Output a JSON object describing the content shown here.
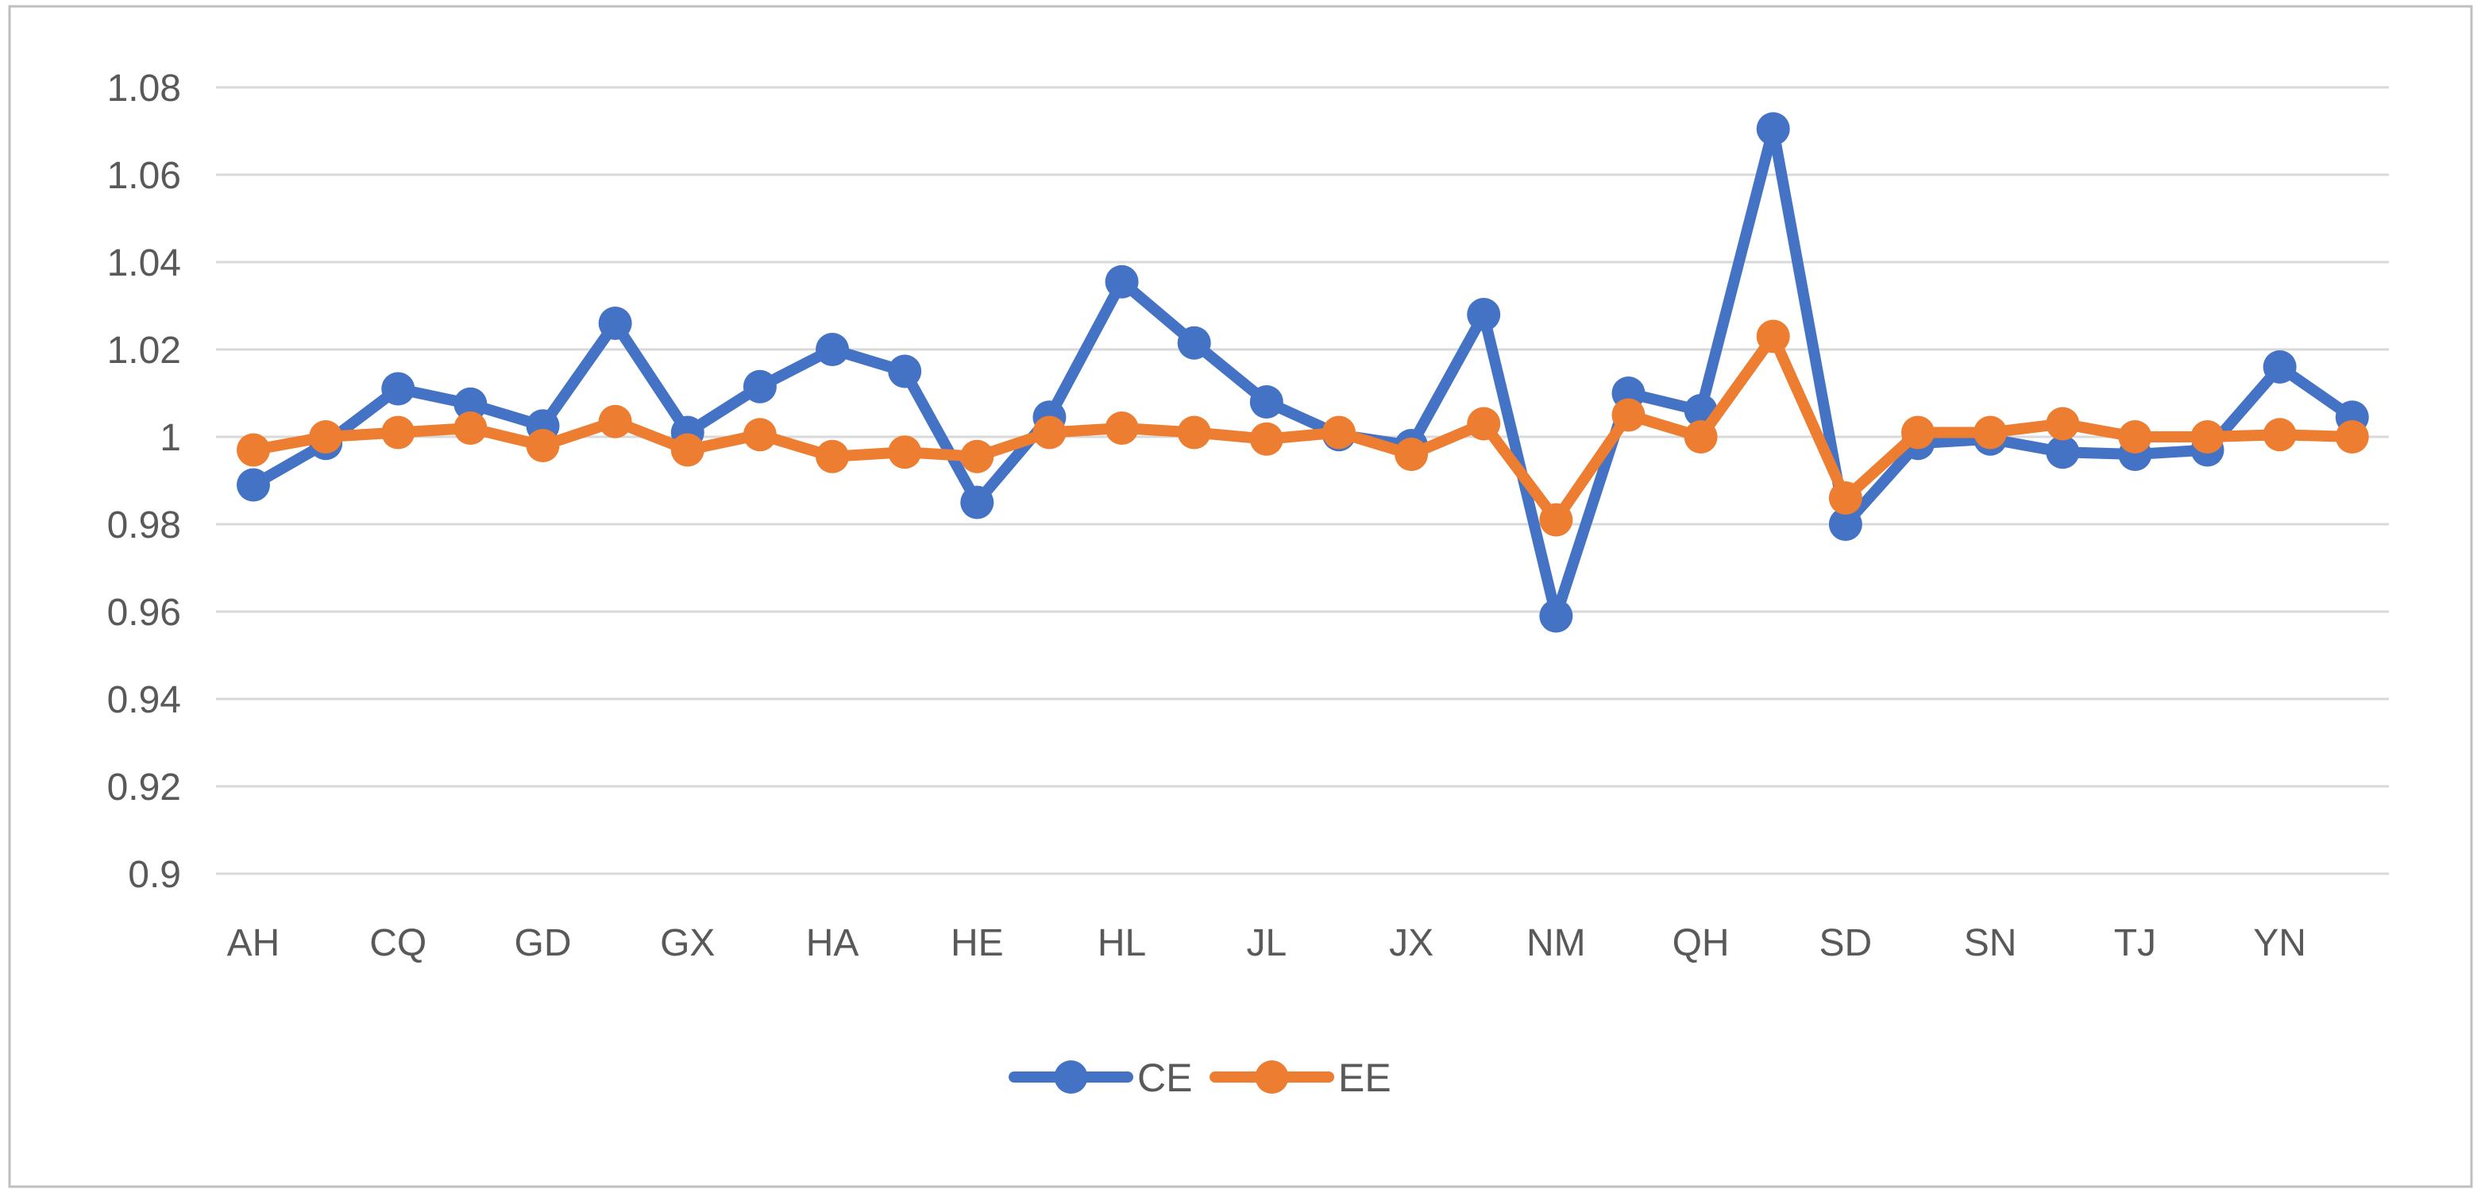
{
  "chart_data": {
    "type": "line",
    "title": "",
    "xlabel": "",
    "ylabel": "",
    "ylim": [
      0.9,
      1.08
    ],
    "grid": true,
    "legend_position": "bottom",
    "y_tick_labels": [
      "1.08",
      "1.06",
      "1.04",
      "1.02",
      "1",
      "0.98",
      "0.96",
      "0.94",
      "0.92",
      "0.9"
    ],
    "x_tick_labels": [
      "AH",
      "CQ",
      "GD",
      "GX",
      "HA",
      "HE",
      "HL",
      "JL",
      "JX",
      "NM",
      "QH",
      "SD",
      "SN",
      "TJ",
      "YN"
    ],
    "x_tick_every": 2,
    "n_points": 30,
    "series": [
      {
        "name": "CE",
        "color": "#4472C4",
        "values": [
          0.989,
          0.9985,
          1.011,
          1.0075,
          1.0025,
          1.026,
          1.001,
          1.0115,
          1.02,
          1.015,
          0.985,
          1.0045,
          1.0355,
          1.0215,
          1.008,
          1.0005,
          0.998,
          1.028,
          0.959,
          1.01,
          1.006,
          1.0705,
          0.98,
          0.9985,
          0.9995,
          0.9965,
          0.996,
          0.997,
          1.016,
          1.0045
        ]
      },
      {
        "name": "EE",
        "color": "#ED7D31",
        "values": [
          0.997,
          1.0,
          1.001,
          1.002,
          0.998,
          1.0035,
          0.997,
          1.0005,
          0.9955,
          0.9965,
          0.9955,
          1.001,
          1.002,
          1.001,
          0.9995,
          1.001,
          0.996,
          1.003,
          0.981,
          1.005,
          1.0,
          1.023,
          0.986,
          1.001,
          1.001,
          1.003,
          1.0,
          1.0,
          1.0005,
          1.0
        ]
      }
    ],
    "colors": {
      "gridline": "#D9D9D9",
      "axis_text": "#595959",
      "legend_text": "#595959",
      "chart_border": "#BFBFBF",
      "background": "#FFFFFF"
    }
  }
}
